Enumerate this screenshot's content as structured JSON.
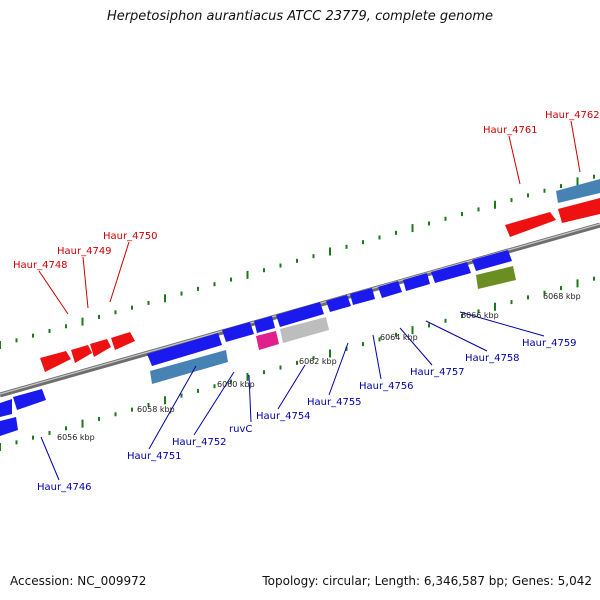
{
  "title": "Herpetosiphon aurantiacus ATCC 23779, complete genome",
  "footer": {
    "accession": "Accession: NC_009972",
    "summary": "Topology: circular; Length: 6,346,587 bp; Genes: 5,042"
  },
  "colors": {
    "forward_label": "#cc0000",
    "reverse_label": "#0000aa",
    "backbone": "#8c8c8c",
    "tick": "#1a7a1a"
  },
  "scale_labels": [
    "6056 kbp",
    "6058 kbp",
    "6060 kbp",
    "6062 kbp",
    "6064 kbp",
    "6066 kbp",
    "6068 kbp"
  ],
  "gene_labels": {
    "top": [
      "Haur_4748",
      "Haur_4749",
      "Haur_4750",
      "Haur_4761",
      "Haur_4762"
    ],
    "bottom": [
      "Haur_4746",
      "Haur_4751",
      "Haur_4752",
      "ruvC",
      "Haur_4754",
      "Haur_4755",
      "Haur_4756",
      "Haur_4757",
      "Haur_4758",
      "Haur_4759"
    ]
  }
}
